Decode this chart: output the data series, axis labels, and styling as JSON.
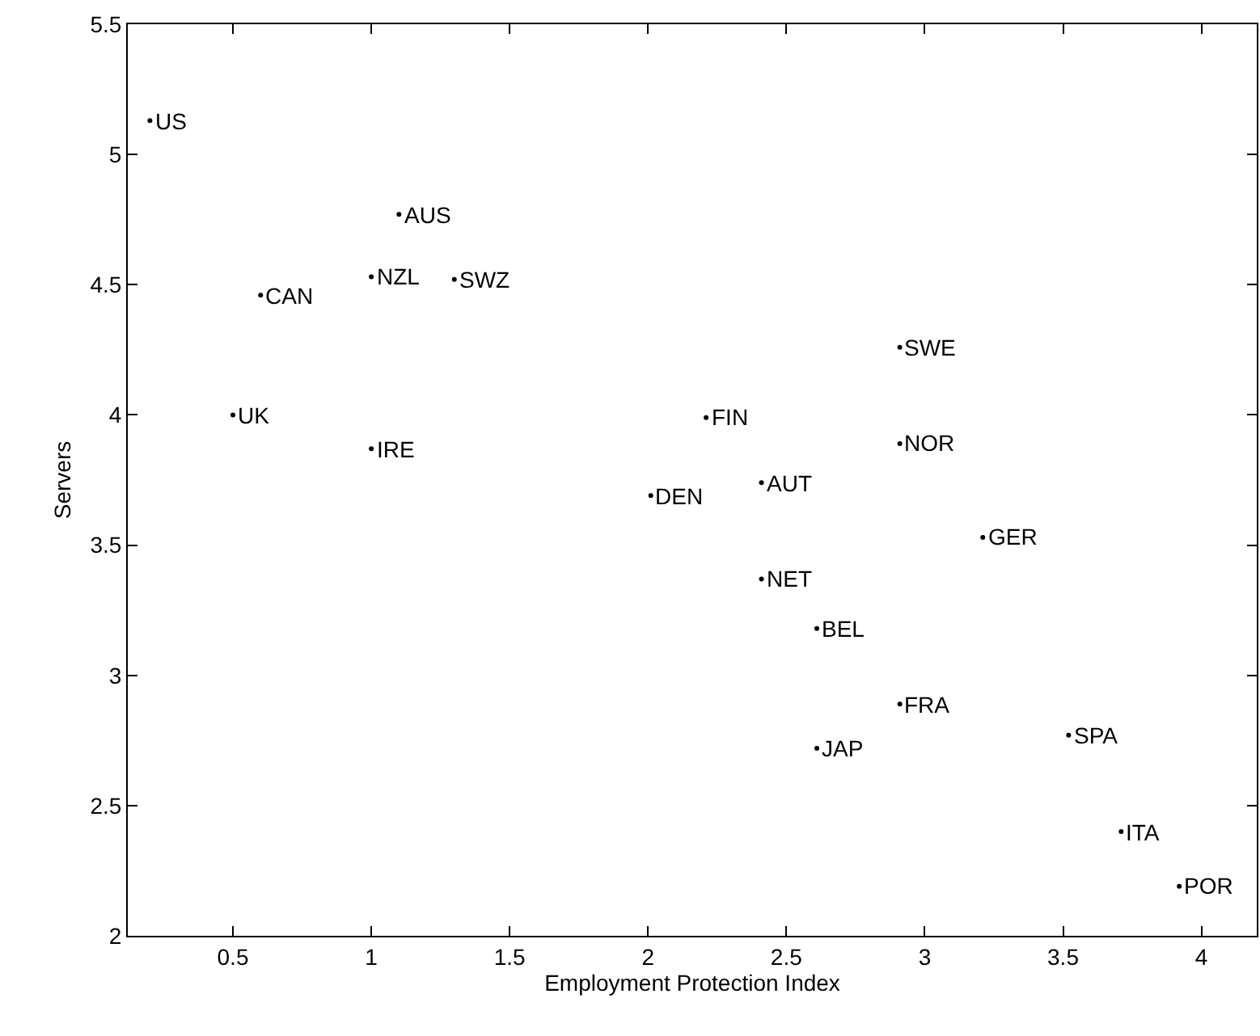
{
  "chart_data": {
    "type": "scatter",
    "xlabel": "Employment Protection Index",
    "ylabel": "Servers",
    "xlim": [
      0.12,
      4.2
    ],
    "xticks": [
      {
        "value": 0.5,
        "label": "0.5"
      },
      1,
      {
        "value": 1.5,
        "label": "1.5"
      },
      2,
      {
        "value": 2.5,
        "label": "2.5"
      },
      3,
      {
        "value": 3.5,
        "label": "3.5"
      },
      4
    ],
    "ylim": [
      2,
      5.5
    ],
    "yticks": [
      2,
      {
        "value": 2.5,
        "label": "2.5"
      },
      3,
      {
        "value": 3.5,
        "label": "3.5"
      },
      4,
      {
        "value": 4.5,
        "label": "4.5"
      },
      5,
      {
        "value": 5.5,
        "label": "5.5"
      }
    ],
    "marker": "circle",
    "legend": false,
    "series": [
      {
        "name": "US",
        "color": "#000000",
        "x": [
          0.2
        ],
        "values": [
          5.13
        ]
      },
      {
        "name": "AUS",
        "color": "#000000",
        "x": [
          1.1
        ],
        "values": [
          4.77
        ]
      },
      {
        "name": "NZL",
        "color": "#000000",
        "x": [
          1.0
        ],
        "values": [
          4.53
        ]
      },
      {
        "name": "SWZ",
        "color": "#000000",
        "x": [
          1.3
        ],
        "values": [
          4.52
        ]
      },
      {
        "name": "CAN",
        "color": "#000000",
        "x": [
          0.6
        ],
        "values": [
          4.46
        ]
      },
      {
        "name": "UK",
        "color": "#000000",
        "x": [
          0.5
        ],
        "values": [
          4.0
        ]
      },
      {
        "name": "IRE",
        "color": "#000000",
        "x": [
          1.0
        ],
        "values": [
          3.87
        ]
      },
      {
        "name": "FIN",
        "color": "#000000",
        "x": [
          2.21
        ],
        "values": [
          3.99
        ]
      },
      {
        "name": "DEN",
        "color": "#000000",
        "x": [
          2.01
        ],
        "values": [
          3.69
        ]
      },
      {
        "name": "AUT",
        "color": "#000000",
        "x": [
          2.41
        ],
        "values": [
          3.74
        ]
      },
      {
        "name": "SWE",
        "color": "#000000",
        "x": [
          2.91
        ],
        "values": [
          4.26
        ]
      },
      {
        "name": "NOR",
        "color": "#000000",
        "x": [
          2.91
        ],
        "values": [
          3.89
        ]
      },
      {
        "name": "GER",
        "color": "#000000",
        "x": [
          3.21
        ],
        "values": [
          3.53
        ]
      },
      {
        "name": "NET",
        "color": "#000000",
        "x": [
          2.41
        ],
        "values": [
          3.37
        ]
      },
      {
        "name": "BEL",
        "color": "#000000",
        "x": [
          2.61
        ],
        "values": [
          3.18
        ]
      },
      {
        "name": "FRA",
        "color": "#000000",
        "x": [
          2.91
        ],
        "values": [
          2.89
        ]
      },
      {
        "name": "JAP",
        "color": "#000000",
        "x": [
          2.61
        ],
        "values": [
          2.72
        ]
      },
      {
        "name": "SPA",
        "color": "#000000",
        "x": [
          3.52
        ],
        "values": [
          2.77
        ]
      },
      {
        "name": "ITA",
        "color": "#000000",
        "x": [
          3.71
        ],
        "values": [
          2.4
        ]
      },
      {
        "name": "POR",
        "color": "#000000",
        "x": [
          3.92
        ],
        "values": [
          2.19
        ]
      }
    ]
  }
}
